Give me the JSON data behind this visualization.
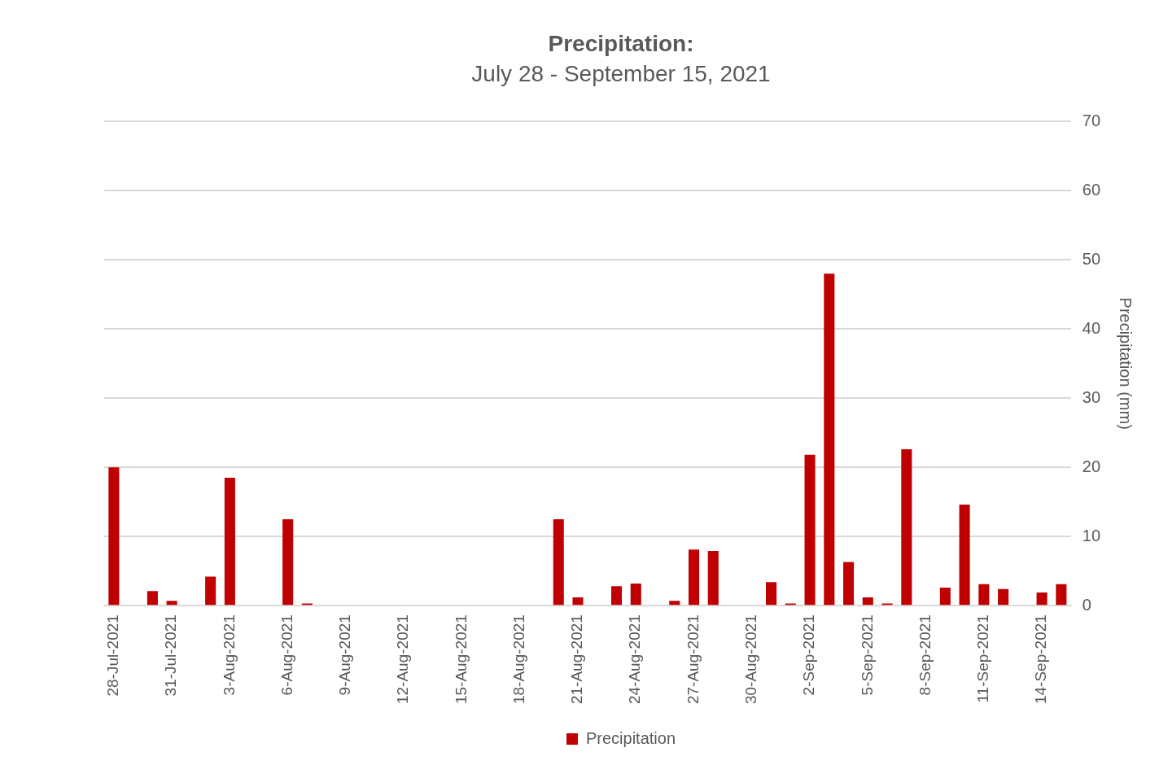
{
  "chart_data": {
    "type": "bar",
    "title": "Precipitation:",
    "subtitle": "July 28 - September 15, 2021",
    "y2label": "Precipitation (mm)",
    "categories": [
      "28-Jul-2021",
      null,
      null,
      "31-Jul-2021",
      null,
      null,
      "3-Aug-2021",
      null,
      null,
      "6-Aug-2021",
      null,
      null,
      "9-Aug-2021",
      null,
      null,
      "12-Aug-2021",
      null,
      null,
      "15-Aug-2021",
      null,
      null,
      "18-Aug-2021",
      null,
      null,
      "21-Aug-2021",
      null,
      null,
      "24-Aug-2021",
      null,
      null,
      "27-Aug-2021",
      null,
      null,
      "30-Aug-2021",
      null,
      null,
      "2-Sep-2021",
      null,
      null,
      "5-Sep-2021",
      null,
      null,
      "8-Sep-2021",
      null,
      null,
      "11-Sep-2021",
      null,
      null,
      "14-Sep-2021",
      null
    ],
    "series": [
      {
        "name": "Precipitation",
        "color": "#c00000",
        "axis": "y2",
        "values": [
          20,
          0,
          2.1,
          0.7,
          0,
          4.2,
          18.5,
          0,
          0,
          12.5,
          0.3,
          0,
          0,
          0,
          0,
          0,
          0,
          0,
          0,
          0,
          0,
          0,
          0,
          12.5,
          1.2,
          0,
          2.8,
          3.2,
          0,
          0.7,
          8.1,
          7.9,
          0,
          0,
          3.4,
          0.3,
          21.8,
          48,
          6.3,
          1.2,
          0.3,
          22.6,
          0,
          2.6,
          14.6,
          3.1,
          2.4,
          0,
          1.9,
          3.1
        ]
      }
    ],
    "y2lim": [
      0,
      70
    ],
    "y2ticks": [
      0,
      10,
      20,
      30,
      40,
      50,
      60,
      70
    ],
    "grid": "y",
    "legend": "bottom"
  }
}
